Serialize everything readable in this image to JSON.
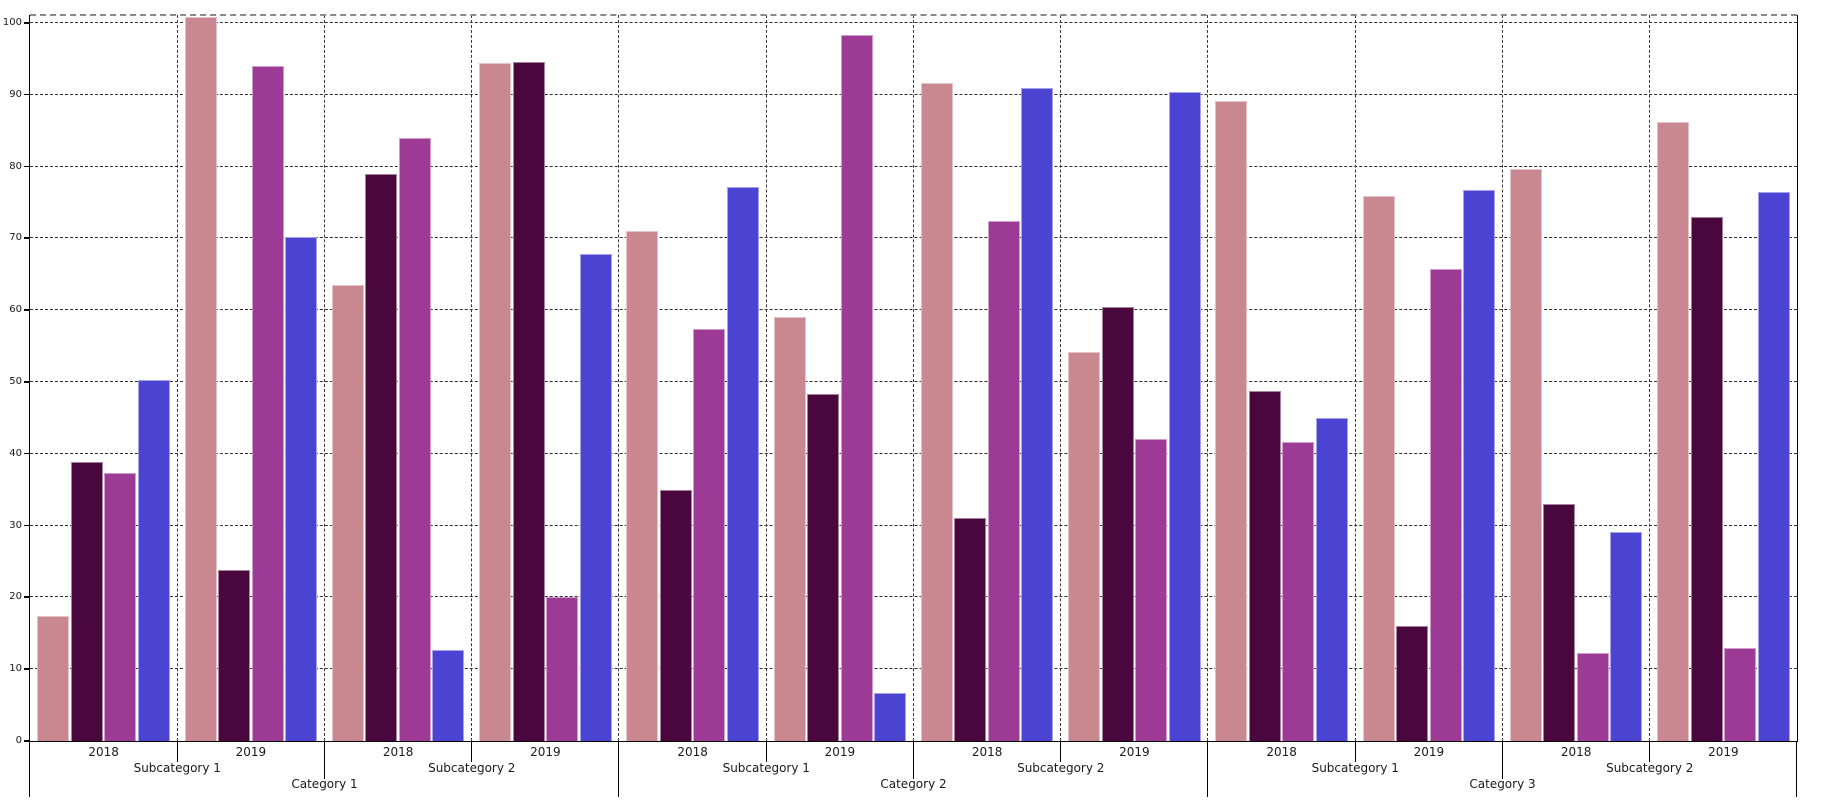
{
  "chart_data": {
    "type": "bar",
    "title": "",
    "xlabel": "",
    "ylabel": "",
    "ylim": [
      0,
      101.1
    ],
    "yticks": [
      0,
      10,
      20,
      30,
      40,
      50,
      60,
      70,
      80,
      90,
      100
    ],
    "grid": "dashed horizontal gridlines at every 10; dashed vertical separators at every group boundary",
    "legend_position": "none",
    "series_order": [
      "pink",
      "dark_purple",
      "magenta",
      "blue"
    ],
    "series_colors": {
      "pink": "#c98790",
      "dark_purple": "#49073e",
      "magenta": "#9d3a95",
      "blue": "#4b44d3"
    },
    "categories": [
      {
        "label": "Category 1",
        "subcategories": [
          {
            "label": "Subcategory 1",
            "groups": [
              {
                "year": "2018",
                "values": [
                  17.4,
                  38.9,
                  37.3,
                  50.3
                ]
              },
              {
                "year": "2019",
                "values": [
                  100.8,
                  23.8,
                  94.0,
                  70.2
                ]
              }
            ]
          },
          {
            "label": "Subcategory 2",
            "groups": [
              {
                "year": "2018",
                "values": [
                  63.5,
                  79.0,
                  84.0,
                  12.7
                ]
              },
              {
                "year": "2019",
                "values": [
                  94.4,
                  94.6,
                  20.1,
                  67.8
                ]
              }
            ]
          }
        ]
      },
      {
        "label": "Category 2",
        "subcategories": [
          {
            "label": "Subcategory 1",
            "groups": [
              {
                "year": "2018",
                "values": [
                  71.0,
                  35.0,
                  57.4,
                  77.2
                ]
              },
              {
                "year": "2019",
                "values": [
                  59.0,
                  48.3,
                  98.4,
                  6.7
                ]
              }
            ]
          },
          {
            "label": "Subcategory 2",
            "groups": [
              {
                "year": "2018",
                "values": [
                  91.7,
                  31.0,
                  72.4,
                  91.0
                ]
              },
              {
                "year": "2019",
                "values": [
                  54.2,
                  60.4,
                  42.1,
                  90.4
                ]
              }
            ]
          }
        ]
      },
      {
        "label": "Category 3",
        "subcategories": [
          {
            "label": "Subcategory 1",
            "groups": [
              {
                "year": "2018",
                "values": [
                  89.2,
                  48.7,
                  41.6,
                  45.0
                ]
              },
              {
                "year": "2019",
                "values": [
                  75.9,
                  16.0,
                  65.7,
                  76.8
                ]
              }
            ]
          },
          {
            "label": "Subcategory 2",
            "groups": [
              {
                "year": "2018",
                "values": [
                  79.6,
                  33.0,
                  12.3,
                  29.1
                ]
              },
              {
                "year": "2019",
                "values": [
                  86.2,
                  73.0,
                  12.9,
                  76.5
                ]
              }
            ]
          }
        ]
      }
    ]
  }
}
